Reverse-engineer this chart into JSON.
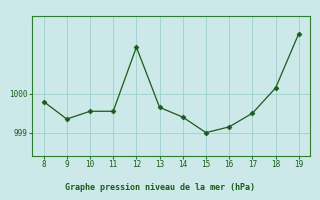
{
  "x": [
    8,
    9,
    10,
    11,
    12,
    13,
    14,
    15,
    16,
    17,
    18,
    19
  ],
  "y": [
    999.8,
    999.35,
    999.55,
    999.55,
    1001.2,
    999.65,
    999.4,
    999.0,
    999.15,
    999.5,
    1000.15,
    1001.55
  ],
  "line_color": "#1a5c1a",
  "marker_color": "#1a5c1a",
  "bg_color": "#cce8e8",
  "grid_color": "#9fcece",
  "border_color": "#2e7c2e",
  "xlabel": "Graphe pression niveau de la mer (hPa)",
  "xlabel_color": "#1a5c1a",
  "tick_color": "#1a5c1a",
  "ytick_labels": [
    "999",
    "1000"
  ],
  "ytick_values": [
    999.0,
    1000.0
  ],
  "ylim": [
    998.4,
    1002.0
  ],
  "xlim": [
    7.5,
    19.5
  ],
  "xticks": [
    8,
    9,
    10,
    11,
    12,
    13,
    14,
    15,
    16,
    17,
    18,
    19
  ]
}
